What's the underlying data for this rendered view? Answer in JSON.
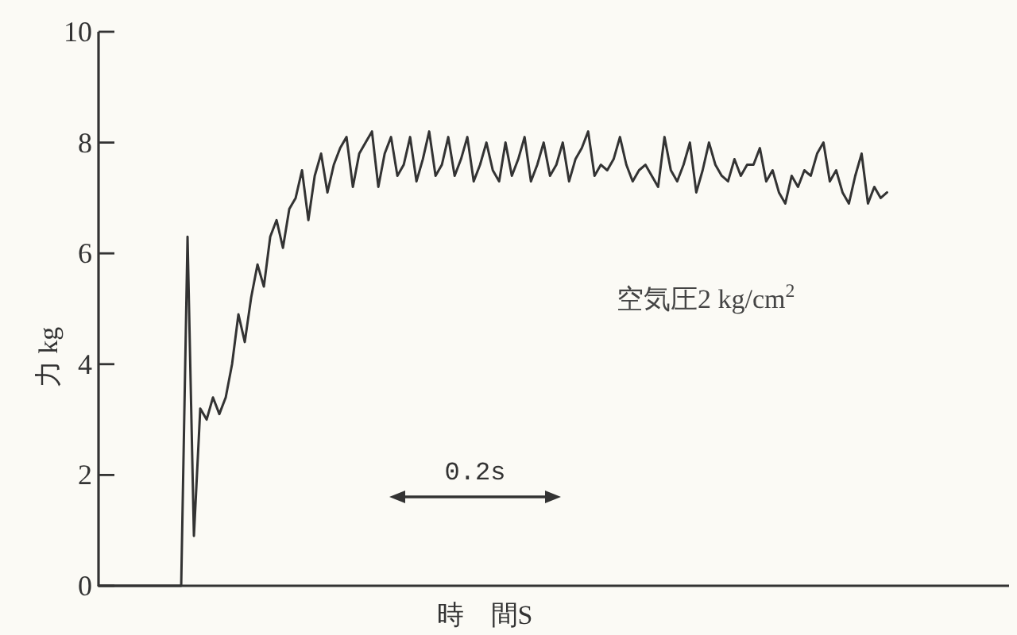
{
  "chart_data": {
    "type": "line",
    "xlabel": "時　間S",
    "ylabel": "力 kg",
    "categories": [
      null,
      null,
      null,
      null,
      null,
      null,
      null,
      null,
      null,
      null,
      null,
      null,
      null,
      null,
      null,
      null,
      null,
      null,
      null,
      null,
      null,
      null,
      null,
      null,
      null,
      null,
      null,
      null,
      null,
      null,
      null,
      null,
      null,
      null,
      null,
      null,
      null,
      null,
      null,
      null,
      null,
      null,
      null,
      null,
      null,
      null,
      null,
      null,
      null,
      null,
      null,
      null,
      null,
      null,
      null,
      null,
      null,
      null,
      null,
      null,
      null,
      null,
      null,
      null,
      null,
      null,
      null,
      null,
      null,
      null,
      null,
      null,
      null,
      null,
      null,
      null,
      null,
      null,
      null,
      null,
      null,
      null,
      null,
      null,
      null,
      null,
      null,
      null,
      null,
      null,
      null,
      null,
      null,
      null,
      null,
      null,
      null,
      null,
      null,
      null,
      null,
      null,
      null,
      null,
      null,
      null,
      null,
      null,
      null,
      null,
      null,
      null,
      null,
      null,
      null,
      null,
      null,
      null,
      null,
      null,
      null,
      null,
      null,
      null,
      null
    ],
    "values": [
      0,
      0,
      0,
      0,
      0,
      0,
      0,
      0,
      0,
      0,
      0,
      0,
      0,
      0,
      6.3,
      0.9,
      3.2,
      3.0,
      3.4,
      3.1,
      3.4,
      4.0,
      4.9,
      4.4,
      5.2,
      5.8,
      5.4,
      6.3,
      6.6,
      6.1,
      6.8,
      7.0,
      7.5,
      6.6,
      7.4,
      7.8,
      7.1,
      7.6,
      7.9,
      8.1,
      7.2,
      7.8,
      8.0,
      8.2,
      7.2,
      7.8,
      8.1,
      7.4,
      7.6,
      8.1,
      7.3,
      7.7,
      8.2,
      7.4,
      7.6,
      8.1,
      7.4,
      7.7,
      8.1,
      7.3,
      7.6,
      8.0,
      7.5,
      7.3,
      8.0,
      7.4,
      7.7,
      8.1,
      7.3,
      7.6,
      8.0,
      7.4,
      7.6,
      8.0,
      7.3,
      7.7,
      7.9,
      8.2,
      7.4,
      7.6,
      7.5,
      7.7,
      8.1,
      7.6,
      7.3,
      7.5,
      7.6,
      7.4,
      7.2,
      8.1,
      7.5,
      7.3,
      7.6,
      8.0,
      7.1,
      7.5,
      8.0,
      7.6,
      7.4,
      7.3,
      7.7,
      7.4,
      7.6,
      7.6,
      7.9,
      7.3,
      7.5,
      7.1,
      6.9,
      7.4,
      7.2,
      7.5,
      7.4,
      7.8,
      8.0,
      7.3,
      7.5,
      7.1,
      6.9,
      7.4,
      7.8,
      6.9,
      7.2,
      7.0,
      7.1
    ],
    "color": "#333333",
    "ylim": [
      0,
      10
    ],
    "yticks": [
      0,
      2,
      4,
      6,
      8,
      10
    ],
    "tick_labels": "y",
    "annotations": [
      "空気圧2 kg/cm$^{2}$",
      "0.2s"
    ]
  }
}
